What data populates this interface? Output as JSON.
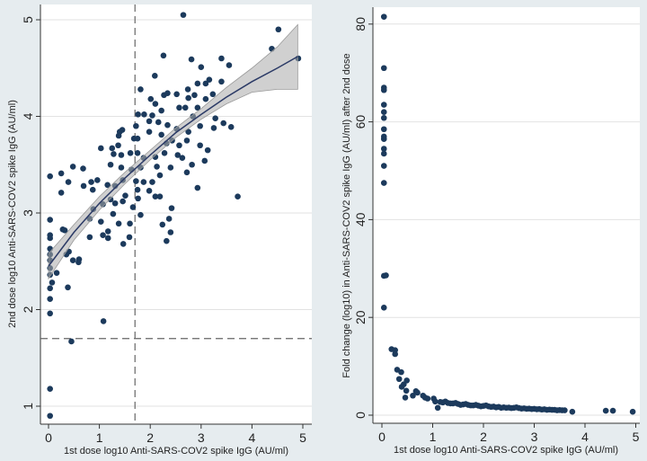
{
  "chart_data": [
    {
      "type": "scatter",
      "title": "",
      "xlabel": "1st dose log10 Anti-SARS-COV2 spike IgG (AU/ml)",
      "ylabel": "2nd dose log10 Anti-SARS-COV2 spike IgG (AU/ml)",
      "xlim": [
        -0.15,
        5.15
      ],
      "ylim": [
        0.8,
        5.15
      ],
      "xticks": [
        0,
        1,
        2,
        3,
        4,
        5
      ],
      "yticks": [
        1,
        2,
        3,
        4,
        5
      ],
      "grid": true,
      "marker_color": "#1c3a5c",
      "reference_lines": {
        "x": 1.7,
        "y": 1.7
      },
      "fit": {
        "x": [
          0,
          0.5,
          1,
          1.5,
          2,
          2.5,
          3,
          3.5,
          4,
          4.5,
          4.9
        ],
        "y": [
          2.45,
          2.8,
          3.1,
          3.36,
          3.6,
          3.83,
          4.02,
          4.2,
          4.36,
          4.5,
          4.62
        ],
        "ci_low": [
          2.32,
          2.72,
          3.03,
          3.3,
          3.55,
          3.78,
          3.97,
          4.13,
          4.25,
          4.28,
          4.28
        ],
        "ci_high": [
          2.58,
          2.88,
          3.17,
          3.42,
          3.65,
          3.88,
          4.08,
          4.3,
          4.5,
          4.72,
          4.95
        ]
      },
      "points": [
        [
          2.65,
          5.05
        ],
        [
          4.52,
          4.9
        ],
        [
          4.39,
          4.7
        ],
        [
          4.91,
          4.6
        ],
        [
          2.26,
          4.63
        ],
        [
          2.81,
          4.59
        ],
        [
          3.4,
          4.6
        ],
        [
          3.55,
          4.53
        ],
        [
          3.0,
          4.51
        ],
        [
          2.09,
          4.42
        ],
        [
          3.16,
          4.38
        ],
        [
          3.4,
          4.36
        ],
        [
          3.09,
          4.34
        ],
        [
          2.93,
          4.34
        ],
        [
          1.81,
          4.28
        ],
        [
          2.74,
          4.28
        ],
        [
          2.34,
          4.24
        ],
        [
          2.27,
          4.22
        ],
        [
          2.52,
          4.23
        ],
        [
          2.87,
          4.22
        ],
        [
          3.23,
          4.23
        ],
        [
          2.01,
          4.18
        ],
        [
          2.75,
          4.19
        ],
        [
          3.09,
          4.18
        ],
        [
          2.1,
          4.13
        ],
        [
          1.76,
          4.02
        ],
        [
          1.88,
          4.02
        ],
        [
          2.04,
          4.01
        ],
        [
          2.22,
          4.06
        ],
        [
          2.57,
          4.09
        ],
        [
          2.69,
          4.09
        ],
        [
          2.93,
          4.09
        ],
        [
          3.28,
          3.98
        ],
        [
          3.25,
          3.88
        ],
        [
          3.44,
          3.93
        ],
        [
          3.59,
          3.89
        ],
        [
          2.98,
          3.9
        ],
        [
          2.84,
          4.0
        ],
        [
          1.98,
          3.95
        ],
        [
          2.16,
          3.94
        ],
        [
          2.34,
          3.91
        ],
        [
          1.72,
          3.9
        ],
        [
          1.4,
          3.84
        ],
        [
          1.45,
          3.86
        ],
        [
          1.38,
          3.8
        ],
        [
          1.68,
          3.77
        ],
        [
          1.75,
          3.77
        ],
        [
          1.98,
          3.84
        ],
        [
          2.22,
          3.81
        ],
        [
          2.43,
          3.75
        ],
        [
          2.72,
          3.75
        ],
        [
          2.75,
          3.84
        ],
        [
          2.52,
          3.87
        ],
        [
          2.32,
          3.72
        ],
        [
          2.57,
          3.7
        ],
        [
          2.98,
          3.7
        ],
        [
          1.03,
          3.67
        ],
        [
          1.25,
          3.67
        ],
        [
          1.37,
          3.7
        ],
        [
          1.28,
          3.61
        ],
        [
          1.43,
          3.6
        ],
        [
          1.61,
          3.62
        ],
        [
          1.75,
          3.62
        ],
        [
          1.87,
          3.57
        ],
        [
          2.1,
          3.58
        ],
        [
          2.28,
          3.62
        ],
        [
          2.54,
          3.6
        ],
        [
          2.63,
          3.57
        ],
        [
          3.13,
          3.65
        ],
        [
          3.07,
          3.54
        ],
        [
          2.82,
          3.5
        ],
        [
          0.48,
          3.48
        ],
        [
          0.68,
          3.46
        ],
        [
          1.22,
          3.5
        ],
        [
          1.43,
          3.47
        ],
        [
          1.63,
          3.45
        ],
        [
          1.81,
          3.47
        ],
        [
          2.13,
          3.48
        ],
        [
          2.4,
          3.47
        ],
        [
          2.72,
          3.42
        ],
        [
          0.03,
          3.38
        ],
        [
          0.25,
          3.41
        ],
        [
          0.39,
          3.32
        ],
        [
          0.84,
          3.32
        ],
        [
          0.96,
          3.34
        ],
        [
          1.16,
          3.29
        ],
        [
          1.31,
          3.28
        ],
        [
          1.46,
          3.34
        ],
        [
          1.72,
          3.33
        ],
        [
          1.87,
          3.32
        ],
        [
          2.04,
          3.32
        ],
        [
          2.19,
          3.39
        ],
        [
          0.69,
          3.28
        ],
        [
          0.87,
          3.24
        ],
        [
          0.25,
          3.21
        ],
        [
          1.75,
          3.24
        ],
        [
          1.98,
          3.23
        ],
        [
          2.1,
          3.17
        ],
        [
          2.19,
          3.17
        ],
        [
          2.93,
          3.26
        ],
        [
          3.72,
          3.17
        ],
        [
          1.51,
          3.18
        ],
        [
          1.76,
          3.15
        ],
        [
          1.22,
          3.14
        ],
        [
          1.31,
          3.1
        ],
        [
          1.07,
          3.09
        ],
        [
          0.88,
          3.04
        ],
        [
          1.46,
          3.12
        ],
        [
          1.66,
          3.06
        ],
        [
          1.81,
          2.98
        ],
        [
          1.27,
          2.99
        ],
        [
          2.42,
          3.05
        ],
        [
          0.03,
          2.93
        ],
        [
          1.03,
          2.91
        ],
        [
          0.81,
          2.94
        ],
        [
          1.38,
          2.89
        ],
        [
          1.6,
          2.89
        ],
        [
          2.24,
          2.88
        ],
        [
          2.37,
          2.94
        ],
        [
          0.28,
          2.83
        ],
        [
          0.32,
          2.82
        ],
        [
          1.17,
          2.81
        ],
        [
          2.4,
          2.8
        ],
        [
          0.03,
          2.77
        ],
        [
          0.03,
          2.74
        ],
        [
          0.81,
          2.75
        ],
        [
          1.07,
          2.77
        ],
        [
          1.17,
          2.74
        ],
        [
          1.59,
          2.75
        ],
        [
          1.47,
          2.68
        ],
        [
          2.32,
          2.71
        ],
        [
          0.03,
          2.63
        ],
        [
          0.03,
          2.57
        ],
        [
          0.4,
          2.6
        ],
        [
          0.35,
          2.57
        ],
        [
          0.48,
          2.51
        ],
        [
          0.6,
          2.52
        ],
        [
          0.59,
          2.49
        ],
        [
          0.03,
          2.51
        ],
        [
          0.03,
          2.43
        ],
        [
          0.03,
          2.36
        ],
        [
          0.16,
          2.38
        ],
        [
          0.07,
          2.28
        ],
        [
          0.03,
          2.22
        ],
        [
          0.38,
          2.23
        ],
        [
          0.03,
          2.11
        ],
        [
          0.03,
          1.96
        ],
        [
          1.08,
          1.88
        ],
        [
          0.45,
          1.67
        ],
        [
          0.03,
          1.18
        ],
        [
          0.03,
          0.9
        ]
      ]
    },
    {
      "type": "scatter",
      "title": "",
      "xlabel": "1st dose log10 Anti-SARS-COV2 spike IgG (AU/ml)",
      "ylabel": "Fold change (log10) in Anti-SARS-COV2 spike IgG (AU/ml) after 2nd dose",
      "xlim": [
        -0.15,
        5.15
      ],
      "ylim": [
        -2,
        84
      ],
      "xticks": [
        0,
        1,
        2,
        3,
        4,
        5
      ],
      "yticks": [
        0,
        20,
        40,
        60,
        80
      ],
      "grid": true,
      "marker_color": "#1c3a5c",
      "points": [
        [
          0.04,
          81.5
        ],
        [
          0.04,
          71
        ],
        [
          0.04,
          67
        ],
        [
          0.04,
          66.5
        ],
        [
          0.04,
          63.5
        ],
        [
          0.04,
          62
        ],
        [
          0.04,
          60.8
        ],
        [
          0.04,
          58.5
        ],
        [
          0.04,
          57
        ],
        [
          0.04,
          56.5
        ],
        [
          0.04,
          54.5
        ],
        [
          0.04,
          53.5
        ],
        [
          0.04,
          51
        ],
        [
          0.04,
          47.5
        ],
        [
          0.04,
          28.5
        ],
        [
          0.08,
          28.6
        ],
        [
          0.04,
          22
        ],
        [
          0.19,
          13.5
        ],
        [
          0.26,
          13.3
        ],
        [
          0.26,
          12.5
        ],
        [
          0.3,
          9.3
        ],
        [
          0.38,
          8.8
        ],
        [
          0.34,
          7.4
        ],
        [
          0.39,
          5.8
        ],
        [
          0.43,
          6.3
        ],
        [
          0.49,
          7.1
        ],
        [
          0.48,
          5.0
        ],
        [
          0.46,
          3.6
        ],
        [
          0.61,
          4.0
        ],
        [
          0.67,
          4.9
        ],
        [
          0.7,
          4.6
        ],
        [
          0.81,
          4.0
        ],
        [
          0.85,
          3.6
        ],
        [
          0.9,
          3.4
        ],
        [
          1.02,
          3.4
        ],
        [
          1.05,
          2.8
        ],
        [
          1.1,
          1.5
        ],
        [
          1.15,
          2.7
        ],
        [
          1.2,
          2.6
        ],
        [
          1.25,
          2.8
        ],
        [
          1.3,
          2.5
        ],
        [
          1.35,
          2.4
        ],
        [
          1.4,
          2.4
        ],
        [
          1.45,
          2.5
        ],
        [
          1.5,
          2.3
        ],
        [
          1.55,
          2.1
        ],
        [
          1.6,
          2.2
        ],
        [
          1.65,
          2.3
        ],
        [
          1.7,
          2.1
        ],
        [
          1.75,
          2.0
        ],
        [
          1.8,
          2.0
        ],
        [
          1.85,
          2.1
        ],
        [
          1.9,
          1.95
        ],
        [
          1.95,
          1.8
        ],
        [
          2.0,
          1.9
        ],
        [
          2.05,
          2.0
        ],
        [
          2.1,
          1.8
        ],
        [
          2.15,
          1.7
        ],
        [
          2.2,
          1.75
        ],
        [
          2.25,
          1.6
        ],
        [
          2.3,
          1.7
        ],
        [
          2.35,
          1.5
        ],
        [
          2.4,
          1.6
        ],
        [
          2.45,
          1.5
        ],
        [
          2.5,
          1.55
        ],
        [
          2.55,
          1.45
        ],
        [
          2.6,
          1.5
        ],
        [
          2.65,
          1.6
        ],
        [
          2.7,
          1.45
        ],
        [
          2.75,
          1.35
        ],
        [
          2.8,
          1.4
        ],
        [
          2.85,
          1.3
        ],
        [
          2.9,
          1.35
        ],
        [
          2.95,
          1.25
        ],
        [
          3.0,
          1.3
        ],
        [
          3.05,
          1.2
        ],
        [
          3.1,
          1.25
        ],
        [
          3.15,
          1.15
        ],
        [
          3.2,
          1.2
        ],
        [
          3.25,
          1.1
        ],
        [
          3.3,
          1.15
        ],
        [
          3.35,
          1.1
        ],
        [
          3.4,
          1.1
        ],
        [
          3.45,
          1.0
        ],
        [
          3.5,
          1.05
        ],
        [
          3.55,
          1.0
        ],
        [
          3.6,
          1.0
        ],
        [
          3.75,
          0.7
        ],
        [
          4.41,
          0.9
        ],
        [
          4.55,
          0.9
        ],
        [
          4.94,
          0.7
        ]
      ]
    }
  ]
}
